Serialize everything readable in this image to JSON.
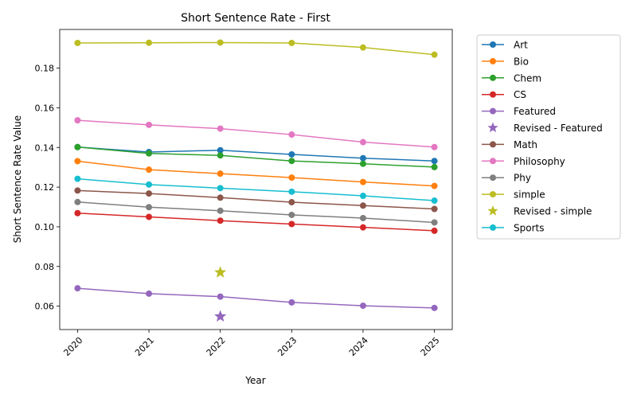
{
  "chart_data": {
    "type": "line",
    "title": "Short Sentence Rate - First",
    "xlabel": "Year",
    "ylabel": "Short Sentence Rate Value",
    "categories": [
      "2020",
      "2021",
      "2022",
      "2023",
      "2024",
      "2025"
    ],
    "xlim": [
      2019.75,
      2025.25
    ],
    "ylim": [
      0.0482,
      0.1995
    ],
    "yticks": [
      "0.06",
      "0.08",
      "0.10",
      "0.12",
      "0.14",
      "0.16",
      "0.18"
    ],
    "ytick_values": [
      0.06,
      0.08,
      0.1,
      0.12,
      0.14,
      0.16,
      0.18
    ],
    "grid": false,
    "legend_position": "outside-right",
    "series": [
      {
        "name": "Art",
        "color": "#1f77b4",
        "values": [
          0.1402,
          0.1377,
          0.1386,
          0.1365,
          0.1346,
          0.1332
        ]
      },
      {
        "name": "Bio",
        "color": "#ff7f0e",
        "values": [
          0.1331,
          0.1288,
          0.1268,
          0.1248,
          0.1226,
          0.1206
        ]
      },
      {
        "name": "Chem",
        "color": "#2ca02c",
        "values": [
          0.1402,
          0.137,
          0.136,
          0.1332,
          0.1318,
          0.1301
        ]
      },
      {
        "name": "CS",
        "color": "#d62728",
        "values": [
          0.1069,
          0.105,
          0.1031,
          0.1014,
          0.0997,
          0.098
        ]
      },
      {
        "name": "Featured",
        "color": "#9467bd",
        "values": [
          0.069,
          0.0663,
          0.0648,
          0.0619,
          0.0602,
          0.0591
        ]
      },
      {
        "name": "Revised - Featured",
        "color": "#9467bd",
        "marker": "star",
        "x": "2022",
        "value": 0.0548
      },
      {
        "name": "Math",
        "color": "#8c564b",
        "values": [
          0.1183,
          0.1168,
          0.1147,
          0.1124,
          0.1107,
          0.109
        ]
      },
      {
        "name": "Philosophy",
        "color": "#e377c2",
        "values": [
          0.1537,
          0.1514,
          0.1495,
          0.1465,
          0.1427,
          0.1402
        ]
      },
      {
        "name": "Phy",
        "color": "#7f7f7f",
        "values": [
          0.1125,
          0.1099,
          0.1081,
          0.106,
          0.1044,
          0.1022
        ]
      },
      {
        "name": "simple",
        "color": "#bcbd22",
        "values": [
          0.1927,
          0.1928,
          0.1929,
          0.1927,
          0.1904,
          0.1868
        ]
      },
      {
        "name": "Revised - simple",
        "color": "#bcbd22",
        "marker": "star",
        "x": "2022",
        "value": 0.077
      },
      {
        "name": "Sports",
        "color": "#17becf",
        "values": [
          0.1242,
          0.1213,
          0.1195,
          0.1177,
          0.1156,
          0.1132
        ]
      }
    ]
  }
}
